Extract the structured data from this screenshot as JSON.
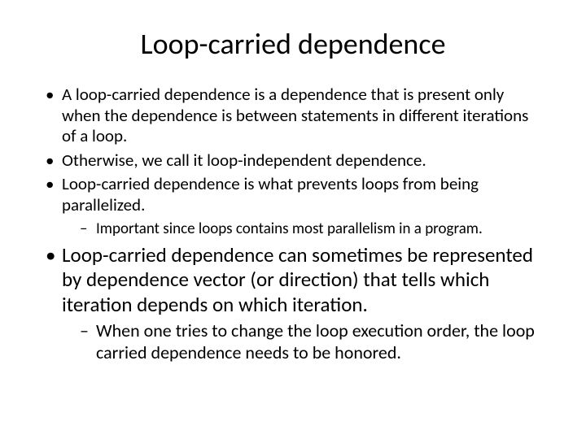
{
  "slide": {
    "background_color": "#ffffff",
    "text_color": "#000000",
    "font_family": "Calibri",
    "title": {
      "text": "Loop-carried dependence",
      "fontsize": 36,
      "align": "center",
      "weight": "normal"
    },
    "bullets": [
      {
        "level": 1,
        "size": "small",
        "text": "A loop-carried dependence is a dependence that is present only when the dependence is between statements in different iterations of a loop."
      },
      {
        "level": 1,
        "size": "small",
        "text": "Otherwise, we call it loop-independent dependence."
      },
      {
        "level": 1,
        "size": "small",
        "text": "Loop-carried dependence is what prevents loops from being parallelized."
      },
      {
        "level": 2,
        "size": "small",
        "text": "Important since loops contains most parallelism in a program."
      },
      {
        "level": 1,
        "size": "big",
        "text": "Loop-carried dependence can sometimes be represented by dependence vector (or direction) that tells which iteration depends on which iteration."
      },
      {
        "level": 2,
        "size": "big",
        "text": "When one tries to change the loop execution order, the loop carried dependence needs to be honored."
      }
    ],
    "fontsize_small_l1": 21,
    "fontsize_small_l2": 19,
    "fontsize_big_l1": 25,
    "fontsize_big_l2": 22,
    "bullet_glyph_l1": "•",
    "bullet_glyph_l2": "–"
  }
}
